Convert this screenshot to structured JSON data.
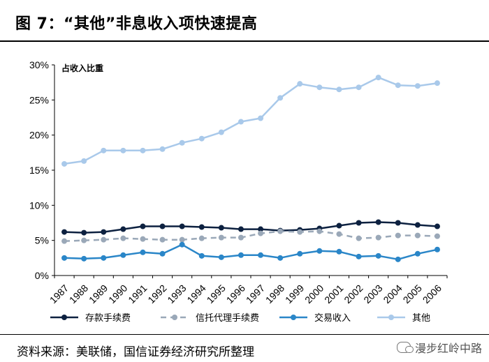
{
  "header": {
    "title": "图 7：“其他”非息收入项快速提高"
  },
  "footer": {
    "source": "资料来源：美联储，国信证券经济研究所整理",
    "watermark": "漫步红岭中路"
  },
  "chart_data": {
    "type": "line",
    "ylabel": "占收入比重",
    "ylim": [
      0,
      30
    ],
    "yticks": [
      "0%",
      "5%",
      "10%",
      "15%",
      "20%",
      "25%",
      "30%"
    ],
    "categories": [
      "1987",
      "1988",
      "1989",
      "1990",
      "1991",
      "1992",
      "1993",
      "1994",
      "1995",
      "1996",
      "1997",
      "1998",
      "1999",
      "2000",
      "2001",
      "2002",
      "2003",
      "2004",
      "2005",
      "2006"
    ],
    "series": [
      {
        "name": "存款手续费",
        "color": "#0d2140",
        "dashed": false,
        "values": [
          6.2,
          6.1,
          6.2,
          6.6,
          7.0,
          7.0,
          7.0,
          6.9,
          6.8,
          6.6,
          6.6,
          6.4,
          6.5,
          6.7,
          7.1,
          7.5,
          7.6,
          7.5,
          7.2,
          7.0
        ]
      },
      {
        "name": "信托代理手续费",
        "color": "#9aa8b8",
        "dashed": true,
        "values": [
          4.9,
          5.0,
          5.1,
          5.3,
          5.2,
          5.1,
          5.1,
          5.3,
          5.4,
          5.4,
          6.0,
          6.3,
          6.2,
          6.3,
          5.9,
          5.3,
          5.4,
          5.7,
          5.7,
          5.6
        ]
      },
      {
        "name": "交易收入",
        "color": "#2a86c8",
        "dashed": false,
        "values": [
          2.5,
          2.4,
          2.5,
          2.9,
          3.3,
          3.1,
          4.4,
          2.8,
          2.6,
          2.9,
          2.9,
          2.5,
          3.1,
          3.5,
          3.4,
          2.7,
          2.8,
          2.3,
          3.1,
          3.7
        ]
      },
      {
        "name": "其他",
        "color": "#a9c9ea",
        "dashed": false,
        "values": [
          15.9,
          16.3,
          17.8,
          17.8,
          17.8,
          18.0,
          18.9,
          19.5,
          20.4,
          21.9,
          22.4,
          25.3,
          27.3,
          26.8,
          26.5,
          26.8,
          28.2,
          27.1,
          27.0,
          27.4
        ]
      }
    ]
  }
}
